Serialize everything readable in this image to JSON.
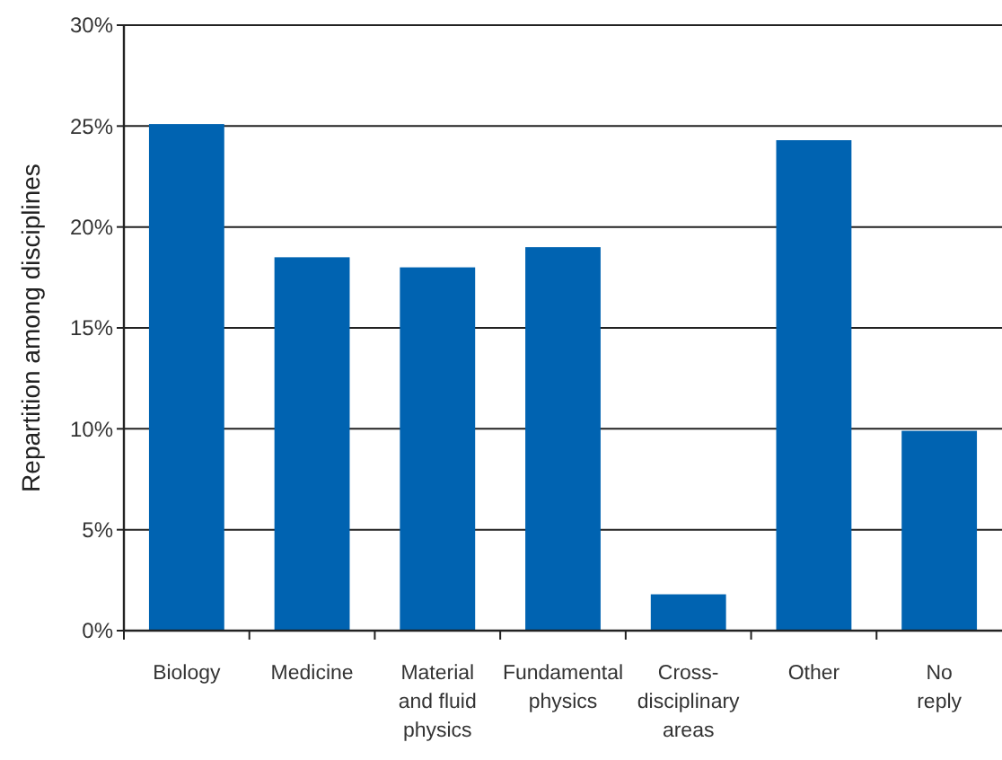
{
  "chart_data": {
    "type": "bar",
    "ylabel": "Repartition among disciplines",
    "categories": [
      "Biology",
      "Medicine",
      "Material\nand fluid\nphysics",
      "Fundamental\nphysics",
      "Cross-\ndisciplinary\nareas",
      "Other",
      "No\nreply"
    ],
    "values": [
      25.1,
      18.5,
      18.0,
      19.0,
      1.8,
      24.3,
      9.9
    ],
    "color": "#0063b1",
    "ylim": [
      0,
      30
    ],
    "yticks": [
      {
        "value": 0,
        "label": "0%"
      },
      {
        "value": 5,
        "label": "5%"
      },
      {
        "value": 10,
        "label": "10%"
      },
      {
        "value": 15,
        "label": "15%"
      },
      {
        "value": 20,
        "label": "20%"
      },
      {
        "value": 25,
        "label": "25%"
      },
      {
        "value": 30,
        "label": "30%"
      }
    ],
    "grid": "y"
  }
}
